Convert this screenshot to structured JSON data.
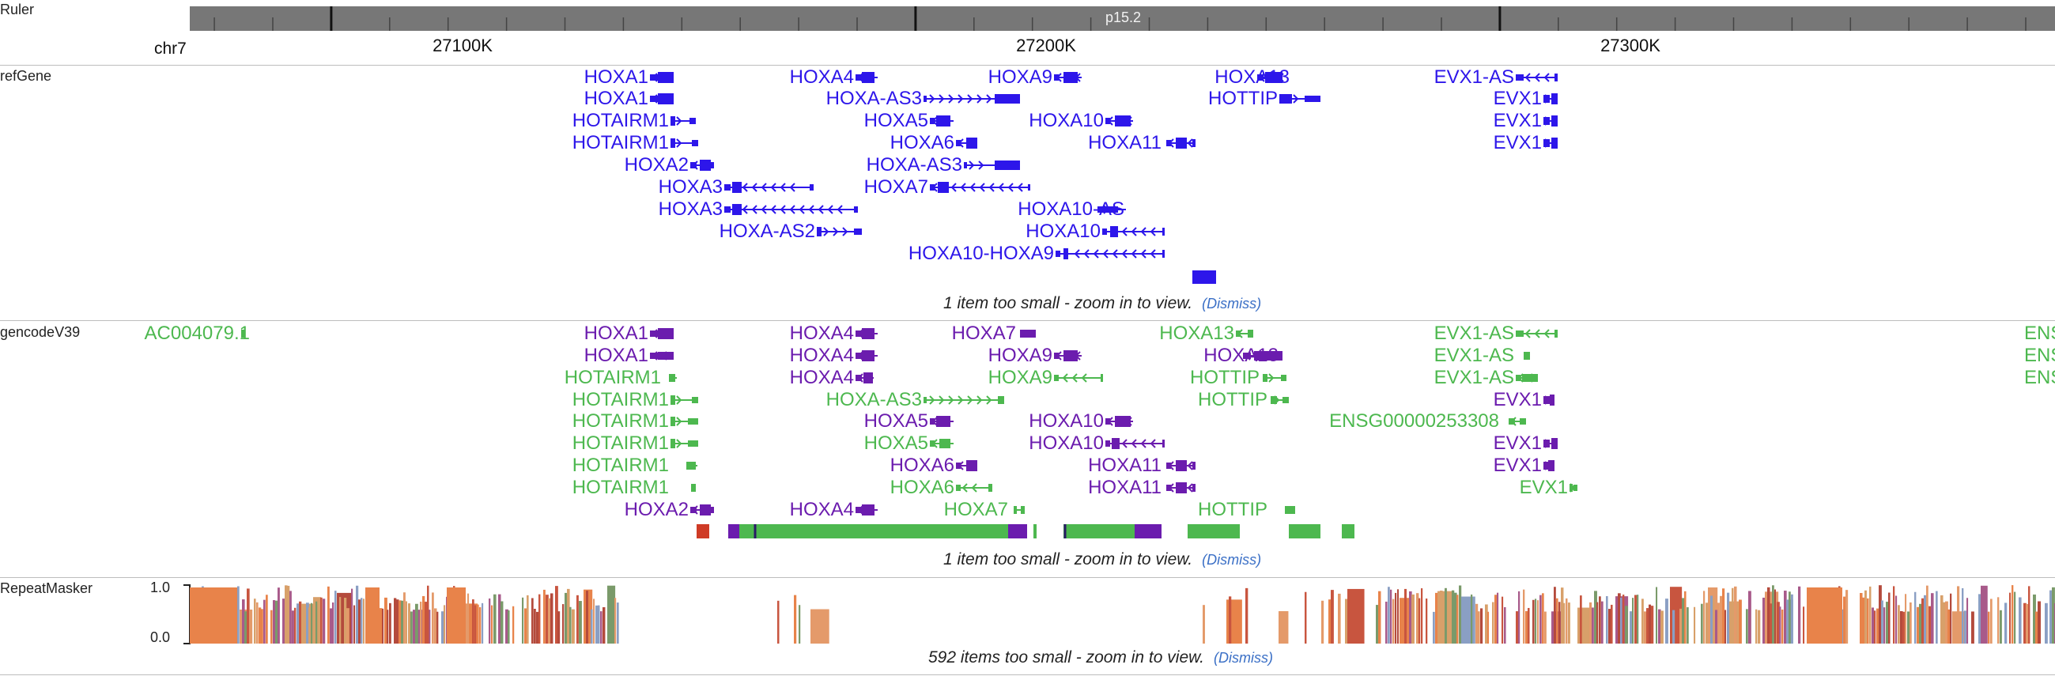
{
  "ruler": {
    "track_label": "Ruler",
    "chrom": "chr7",
    "band": "p15.2",
    "coords": [
      "27100K",
      "27200K",
      "27300K"
    ]
  },
  "refgene": {
    "track_label": "refGene",
    "notice": "1 item too small - zoom in to view.",
    "dismiss": "Dismiss",
    "color": "#2d16ea",
    "genes": [
      {
        "label": "HOXA1",
        "strand": "-"
      },
      {
        "label": "HOXA1",
        "strand": "-"
      },
      {
        "label": "HOTAIRM1",
        "strand": "+"
      },
      {
        "label": "HOTAIRM1",
        "strand": "+"
      },
      {
        "label": "HOXA2",
        "strand": "-"
      },
      {
        "label": "HOXA3",
        "strand": "-"
      },
      {
        "label": "HOXA3",
        "strand": "-"
      },
      {
        "label": "HOXA-AS2",
        "strand": "+"
      },
      {
        "label": "HOXA4",
        "strand": "-"
      },
      {
        "label": "HOXA-AS3",
        "strand": "+"
      },
      {
        "label": "HOXA5",
        "strand": "-"
      },
      {
        "label": "HOXA6",
        "strand": "-"
      },
      {
        "label": "HOXA-AS3",
        "strand": "+"
      },
      {
        "label": "HOXA7",
        "strand": "-"
      },
      {
        "label": "HOXA9",
        "strand": "-"
      },
      {
        "label": "HOXA10",
        "strand": "-"
      },
      {
        "label": "HOXA10-AS",
        "strand": "+"
      },
      {
        "label": "HOXA10",
        "strand": "-"
      },
      {
        "label": "HOXA10-HOXA9",
        "strand": "-"
      },
      {
        "label": "HOXA13",
        "strand": "-"
      },
      {
        "label": "HOTTIP",
        "strand": "+"
      },
      {
        "label": "HOXA11",
        "strand": "-"
      },
      {
        "label": "EVX1-AS",
        "strand": "-"
      },
      {
        "label": "EVX1",
        "strand": "+"
      },
      {
        "label": "EVX1",
        "strand": "+"
      },
      {
        "label": "EVX1",
        "strand": "+"
      }
    ]
  },
  "gencode": {
    "track_label": "gencodeV39",
    "notice": "1 item too small - zoom in to view.",
    "dismiss": "Dismiss",
    "colors": {
      "coding": "#6b1cae",
      "noncoding": "#4db84f"
    },
    "genes": [
      {
        "label": "AC004079.1",
        "type": "noncoding"
      },
      {
        "label": "HOXA1",
        "type": "coding"
      },
      {
        "label": "HOXA1",
        "type": "coding"
      },
      {
        "label": "HOTAIRM1",
        "type": "noncoding"
      },
      {
        "label": "HOTAIRM1",
        "type": "noncoding"
      },
      {
        "label": "HOTAIRM1",
        "type": "noncoding"
      },
      {
        "label": "HOTAIRM1",
        "type": "noncoding"
      },
      {
        "label": "HOTAIRM1",
        "type": "noncoding"
      },
      {
        "label": "HOTAIRM1",
        "type": "noncoding"
      },
      {
        "label": "HOXA2",
        "type": "coding"
      },
      {
        "label": "HOXA4",
        "type": "coding"
      },
      {
        "label": "HOXA4",
        "type": "coding"
      },
      {
        "label": "HOXA4",
        "type": "coding"
      },
      {
        "label": "HOXA-AS3",
        "type": "noncoding"
      },
      {
        "label": "HOXA5",
        "type": "coding"
      },
      {
        "label": "HOXA5",
        "type": "noncoding"
      },
      {
        "label": "HOXA6",
        "type": "coding"
      },
      {
        "label": "HOXA6",
        "type": "noncoding"
      },
      {
        "label": "HOXA4",
        "type": "coding"
      },
      {
        "label": "HOXA7",
        "type": "coding"
      },
      {
        "label": "HOXA9",
        "type": "coding"
      },
      {
        "label": "HOXA9",
        "type": "noncoding"
      },
      {
        "label": "HOXA10",
        "type": "coding"
      },
      {
        "label": "HOXA10",
        "type": "coding"
      },
      {
        "label": "HOXA11",
        "type": "coding"
      },
      {
        "label": "HOXA11",
        "type": "coding"
      },
      {
        "label": "HOXA7",
        "type": "noncoding"
      },
      {
        "label": "HOXA13",
        "type": "noncoding"
      },
      {
        "label": "HOXA13",
        "type": "coding"
      },
      {
        "label": "HOTTIP",
        "type": "noncoding"
      },
      {
        "label": "HOTTIP",
        "type": "noncoding"
      },
      {
        "label": "HOTTIP",
        "type": "noncoding"
      },
      {
        "label": "EVX1-AS",
        "type": "noncoding"
      },
      {
        "label": "EVX1-AS",
        "type": "noncoding"
      },
      {
        "label": "EVX1-AS",
        "type": "noncoding"
      },
      {
        "label": "ENSG00000253308",
        "type": "noncoding"
      },
      {
        "label": "EVX1",
        "type": "coding"
      },
      {
        "label": "EVX1",
        "type": "coding"
      },
      {
        "label": "EVX1",
        "type": "coding"
      },
      {
        "label": "EVX1",
        "type": "noncoding"
      },
      {
        "label": "ENS",
        "type": "noncoding"
      },
      {
        "label": "ENS",
        "type": "noncoding"
      },
      {
        "label": "ENS",
        "type": "noncoding"
      }
    ]
  },
  "repeatmasker": {
    "track_label": "RepeatMasker",
    "scale_max": "1.0",
    "scale_min": "0.0",
    "notice": "592 items too small - zoom in to view.",
    "dismiss": "Dismiss",
    "colors": [
      "#e8834a",
      "#c8553f",
      "#b44a3c",
      "#d8a06a",
      "#8a9fc4",
      "#7a9a6a",
      "#e49a6a",
      "#a85a8a"
    ]
  }
}
